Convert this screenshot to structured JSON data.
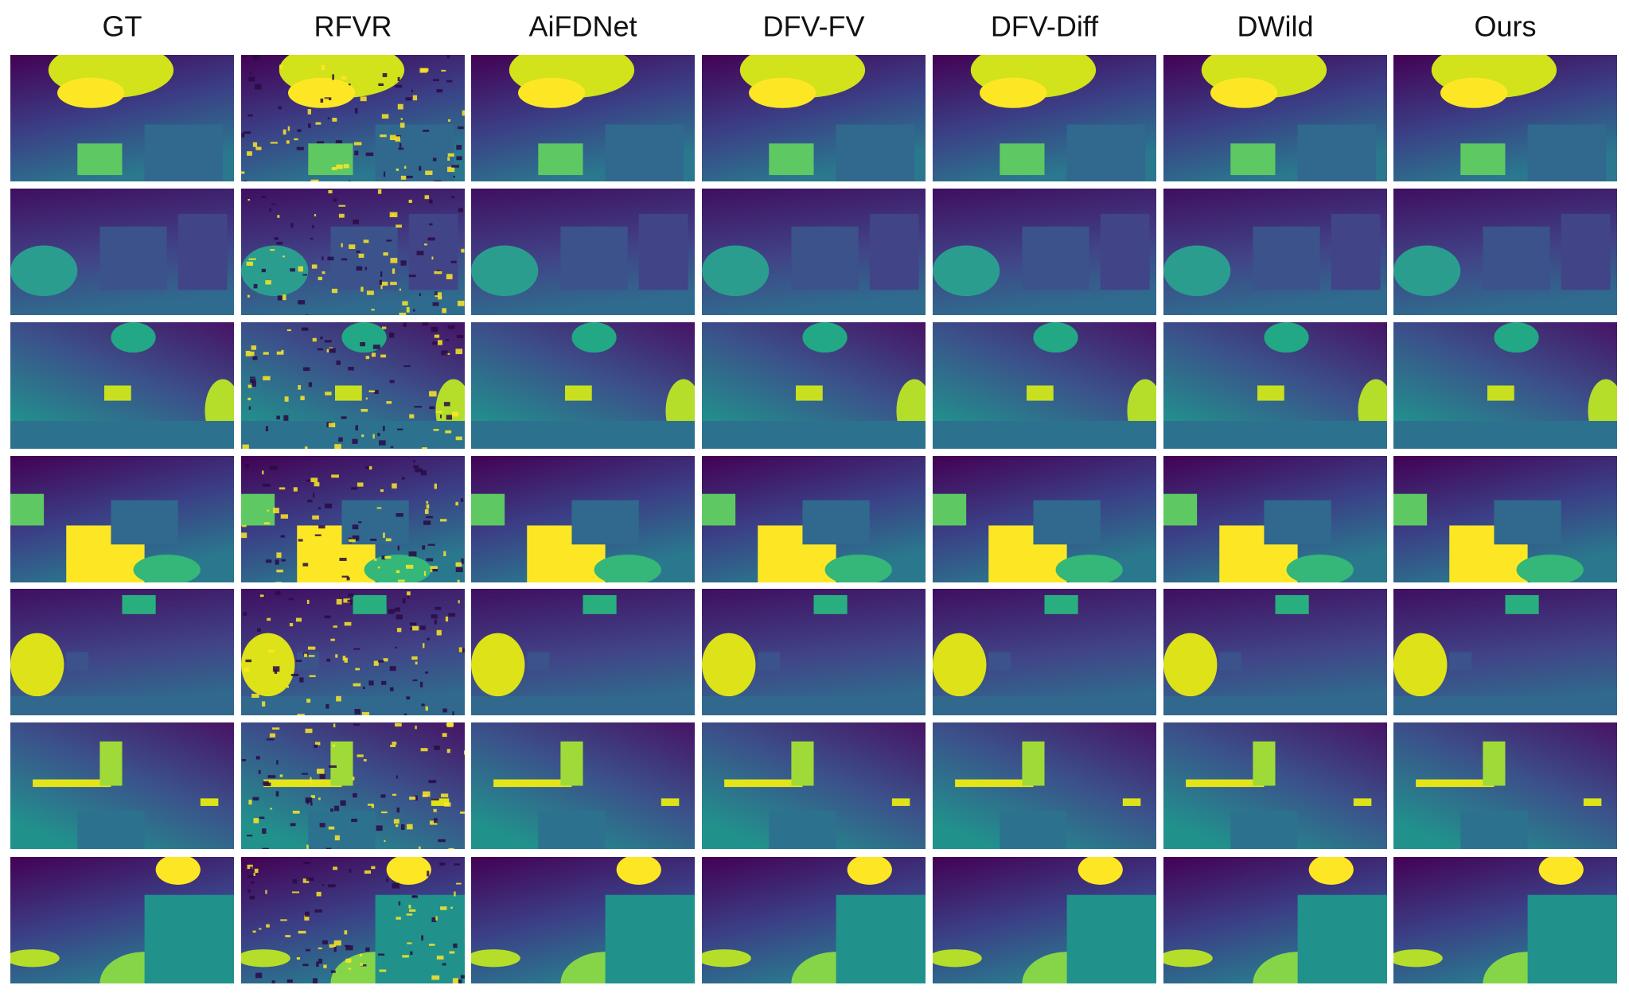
{
  "columns": [
    "GT",
    "RFVR",
    "AiFDNet",
    "DFV-FV",
    "DFV-Diff",
    "DWild",
    "Ours"
  ]
}
